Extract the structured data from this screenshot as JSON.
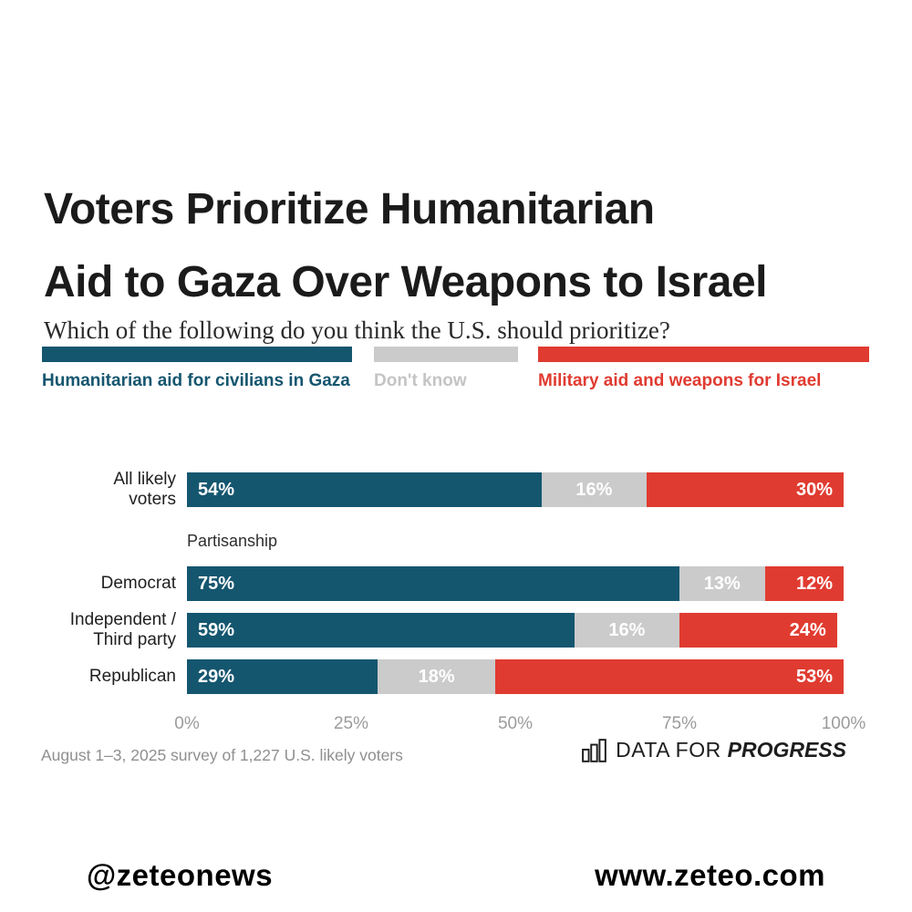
{
  "title": {
    "line1": "Voters Prioritize Humanitarian",
    "line2": "Aid to Gaza Over Weapons to Israel"
  },
  "subtitle": "Which of the following do you think the U.S. should prioritize?",
  "legend": {
    "items": [
      {
        "label": "Humanitarian aid for civilians in Gaza",
        "color": "#15566F",
        "label_color": "#15566F"
      },
      {
        "label": "Don't know",
        "color": "#CBCBCB",
        "label_color": "#C4C4C4"
      },
      {
        "label": "Military aid and weapons for Israel",
        "color": "#E03B30",
        "label_color": "#E03B30"
      }
    ]
  },
  "chart_data": {
    "type": "bar",
    "stacked": true,
    "orientation": "horizontal",
    "title": "Voters Prioritize Humanitarian Aid to Gaza Over Weapons to Israel",
    "subtitle": "Which of the following do you think the U.S. should prioritize?",
    "series": [
      "Humanitarian aid for civilians in Gaza",
      "Don't know",
      "Military aid and weapons for Israel"
    ],
    "colors": [
      "#15566F",
      "#CBCBCB",
      "#E03B30"
    ],
    "categories": [
      "All likely voters",
      "Democrat",
      "Independent / Third party",
      "Republican"
    ],
    "group_label": "Partisanship",
    "rows": [
      {
        "label": "All likely\nvoters",
        "values": [
          54,
          16,
          30
        ]
      },
      {
        "label": "Democrat",
        "values": [
          75,
          13,
          12
        ],
        "group_before": "Partisanship"
      },
      {
        "label": "Independent /\nThird party",
        "values": [
          59,
          16,
          24
        ]
      },
      {
        "label": "Republican",
        "values": [
          29,
          18,
          53
        ]
      }
    ],
    "x_ticks": [
      "0%",
      "25%",
      "50%",
      "75%",
      "100%"
    ],
    "xlim": [
      0,
      100
    ],
    "legend_position": "top",
    "grid": false
  },
  "footer": {
    "survey_note": "August 1–3, 2025 survey of 1,227 U.S. likely voters",
    "logo": {
      "prefix": "DATA FOR",
      "suffix": "PROGRESS",
      "icon": "bar-chart-icon"
    }
  },
  "social": {
    "handle": "@zeteonews",
    "website": "www.zeteo.com"
  }
}
